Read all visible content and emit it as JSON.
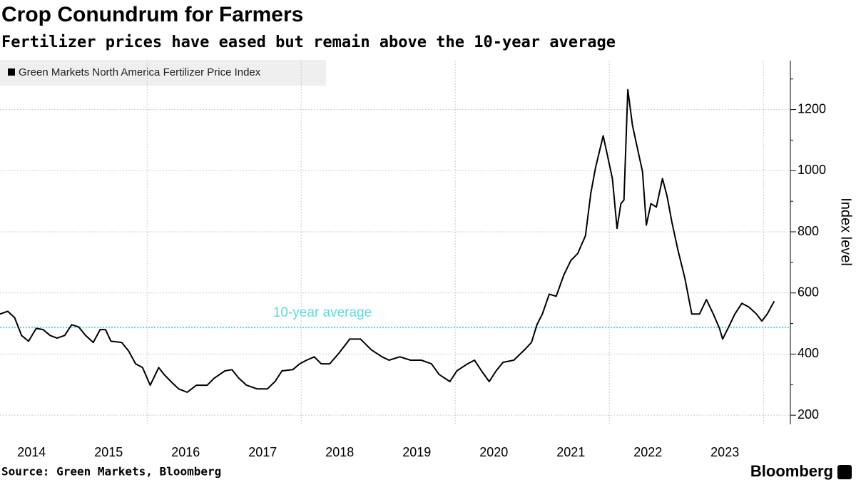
{
  "chart_data": {
    "type": "line",
    "title": "Crop Conundrum for Farmers",
    "subtitle": "Fertilizer prices have eased but remain above the 10-year average",
    "ylabel": "Index level",
    "source": "Source: Green Markets, Bloomberg",
    "logo": "Bloomberg",
    "xlim": [
      2014.09,
      2024.35
    ],
    "xticks": [
      {
        "value": 2014.5,
        "label": "2014"
      },
      {
        "value": 2015.5,
        "label": "2015"
      },
      {
        "value": 2016.5,
        "label": "2016"
      },
      {
        "value": 2017.5,
        "label": "2017"
      },
      {
        "value": 2018.5,
        "label": "2018"
      },
      {
        "value": 2019.5,
        "label": "2019"
      },
      {
        "value": 2020.5,
        "label": "2020"
      },
      {
        "value": 2021.5,
        "label": "2021"
      },
      {
        "value": 2022.5,
        "label": "2022"
      },
      {
        "value": 2023.5,
        "label": "2023"
      }
    ],
    "xgrid": [
      2016,
      2018,
      2020,
      2022,
      2024
    ],
    "ylim": [
      170,
      1360
    ],
    "yticks": [
      200,
      400,
      600,
      800,
      1000,
      1200
    ],
    "yminor": [
      300,
      500,
      700,
      900,
      1100,
      1300
    ],
    "grid": true,
    "reference": {
      "value": 487,
      "label": "10-year average",
      "color": "#5fd8dd"
    },
    "x": [
      2014.09,
      2014.19,
      2014.28,
      2014.37,
      2014.46,
      2014.56,
      2014.65,
      2014.74,
      2014.83,
      2014.93,
      2015.02,
      2015.11,
      2015.2,
      2015.3,
      2015.39,
      2015.46,
      2015.53,
      2015.67,
      2015.76,
      2015.85,
      2015.94,
      2016.04,
      2016.15,
      2016.22,
      2016.31,
      2016.41,
      2016.52,
      2016.64,
      2016.78,
      2016.87,
      2017.01,
      2017.1,
      2017.19,
      2017.29,
      2017.43,
      2017.56,
      2017.66,
      2017.75,
      2017.89,
      2017.98,
      2018.07,
      2018.17,
      2018.26,
      2018.37,
      2018.49,
      2018.63,
      2018.77,
      2018.91,
      2019.05,
      2019.14,
      2019.28,
      2019.42,
      2019.56,
      2019.69,
      2019.79,
      2019.93,
      2020.02,
      2020.16,
      2020.25,
      2020.34,
      2020.44,
      2020.53,
      2020.62,
      2020.76,
      2020.9,
      2020.99,
      2021.06,
      2021.13,
      2021.22,
      2021.31,
      2021.41,
      2021.5,
      2021.59,
      2021.69,
      2021.76,
      2021.82,
      2021.92,
      2021.98,
      2022.04,
      2022.1,
      2022.15,
      2022.19,
      2022.24,
      2022.3,
      2022.35,
      2022.43,
      2022.48,
      2022.54,
      2022.61,
      2022.69,
      2022.75,
      2022.81,
      2022.89,
      2022.98,
      2023.07,
      2023.17,
      2023.26,
      2023.35,
      2023.43,
      2023.47,
      2023.54,
      2023.63,
      2023.72,
      2023.81,
      2023.91,
      2023.98,
      2024.05,
      2024.14
    ],
    "series": [
      {
        "name": "Green Markets North America Fertilizer Price Index",
        "color": "#000000",
        "values": [
          531,
          540,
          519,
          461,
          442,
          484,
          480,
          461,
          452,
          461,
          496,
          489,
          461,
          438,
          480,
          480,
          442,
          438,
          410,
          368,
          356,
          298,
          356,
          333,
          310,
          286,
          275,
          298,
          298,
          321,
          345,
          349,
          321,
          298,
          286,
          286,
          310,
          345,
          349,
          368,
          380,
          391,
          368,
          368,
          403,
          449,
          449,
          414,
          391,
          380,
          391,
          380,
          380,
          368,
          333,
          310,
          345,
          368,
          380,
          345,
          310,
          345,
          373,
          380,
          414,
          438,
          496,
          531,
          596,
          589,
          659,
          706,
          729,
          787,
          927,
          1009,
          1114,
          1044,
          974,
          811,
          892,
          904,
          1265,
          1149,
          1090,
          997,
          822,
          892,
          881,
          974,
          916,
          834,
          741,
          648,
          531,
          531,
          578,
          531,
          484,
          449,
          484,
          531,
          566,
          554,
          531,
          508,
          531,
          573
        ]
      }
    ]
  }
}
